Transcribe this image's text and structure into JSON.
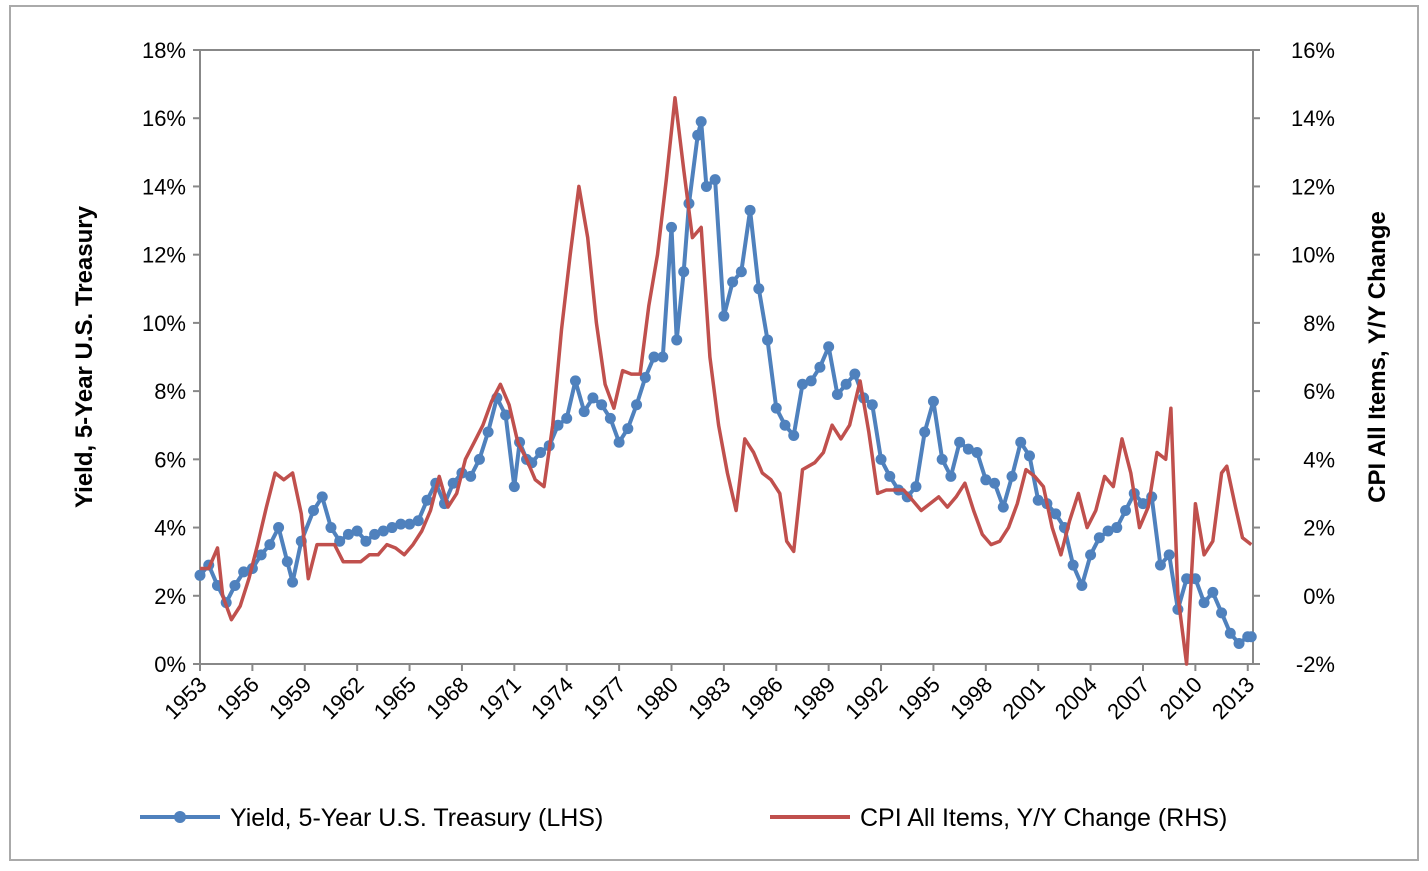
{
  "chart_data": {
    "type": "line",
    "y_label": "Yield, 5-Year U.S. Treasury",
    "y2_label": "CPI All Items, Y/Y Change",
    "xlim": [
      1953,
      2013.3
    ],
    "xticks": [
      1953,
      1956,
      1959,
      1962,
      1965,
      1968,
      1971,
      1974,
      1977,
      1980,
      1983,
      1986,
      1989,
      1992,
      1995,
      1998,
      2001,
      2004,
      2007,
      2010,
      2013
    ],
    "ylim": [
      0,
      18
    ],
    "yticks": [
      {
        "value": 0,
        "label": "0%"
      },
      {
        "value": 2,
        "label": "2%"
      },
      {
        "value": 4,
        "label": "4%"
      },
      {
        "value": 6,
        "label": "6%"
      },
      {
        "value": 8,
        "label": "8%"
      },
      {
        "value": 10,
        "label": "10%"
      },
      {
        "value": 12,
        "label": "12%"
      },
      {
        "value": 14,
        "label": "14%"
      },
      {
        "value": 16,
        "label": "16%"
      },
      {
        "value": 18,
        "label": "18%"
      }
    ],
    "y2lim": [
      -2,
      16
    ],
    "y2ticks": [
      {
        "value": -2,
        "label": "-2%"
      },
      {
        "value": 0,
        "label": "0%"
      },
      {
        "value": 2,
        "label": "2%"
      },
      {
        "value": 4,
        "label": "4%"
      },
      {
        "value": 6,
        "label": "6%"
      },
      {
        "value": 8,
        "label": "8%"
      },
      {
        "value": 10,
        "label": "10%"
      },
      {
        "value": 12,
        "label": "12%"
      },
      {
        "value": 14,
        "label": "14%"
      },
      {
        "value": 16,
        "label": "16%"
      }
    ],
    "legend": "bottom",
    "series": [
      {
        "name": "Yield, 5-Year U.S. Treasury (LHS)",
        "color": "#4f81bd",
        "markers": true,
        "axis": "y",
        "x": [
          1953,
          1953.5,
          1954,
          1954.5,
          1955,
          1955.5,
          1956,
          1956.5,
          1957,
          1957.5,
          1958,
          1958.3,
          1958.8,
          1959.5,
          1960,
          1960.5,
          1961,
          1961.5,
          1962,
          1962.5,
          1963,
          1963.5,
          1964,
          1964.5,
          1965,
          1965.5,
          1966,
          1966.5,
          1967,
          1967.5,
          1968,
          1968.5,
          1969,
          1969.5,
          1970,
          1970.5,
          1971,
          1971.3,
          1971.7,
          1972,
          1972.5,
          1973,
          1973.5,
          1974,
          1974.5,
          1975,
          1975.5,
          1976,
          1976.5,
          1977,
          1977.5,
          1978,
          1978.5,
          1979,
          1979.5,
          1980,
          1980.3,
          1980.7,
          1981,
          1981.5,
          1981.7,
          1982,
          1982.5,
          1983,
          1983.5,
          1984,
          1984.5,
          1985,
          1985.5,
          1986,
          1986.5,
          1987,
          1987.5,
          1988,
          1988.5,
          1989,
          1989.5,
          1990,
          1990.5,
          1991,
          1991.5,
          1992,
          1992.5,
          1993,
          1993.5,
          1994,
          1994.5,
          1995,
          1995.5,
          1996,
          1996.5,
          1997,
          1997.5,
          1998,
          1998.5,
          1999,
          1999.5,
          2000,
          2000.5,
          2001,
          2001.5,
          2002,
          2002.5,
          2003,
          2003.5,
          2004,
          2004.5,
          2005,
          2005.5,
          2006,
          2006.5,
          2007,
          2007.5,
          2008,
          2008.5,
          2009,
          2009.5,
          2010,
          2010.5,
          2011,
          2011.5,
          2012,
          2012.5,
          2013,
          2013.2
        ],
        "values": [
          2.6,
          2.9,
          2.3,
          1.8,
          2.3,
          2.7,
          2.8,
          3.2,
          3.5,
          4.0,
          3.0,
          2.4,
          3.6,
          4.5,
          4.9,
          4.0,
          3.6,
          3.8,
          3.9,
          3.6,
          3.8,
          3.9,
          4.0,
          4.1,
          4.1,
          4.2,
          4.8,
          5.3,
          4.7,
          5.3,
          5.6,
          5.5,
          6.0,
          6.8,
          7.8,
          7.3,
          5.2,
          6.5,
          6.0,
          5.9,
          6.2,
          6.4,
          7.0,
          7.2,
          8.3,
          7.4,
          7.8,
          7.6,
          7.2,
          6.5,
          6.9,
          7.6,
          8.4,
          9.0,
          9.0,
          12.8,
          9.5,
          11.5,
          13.5,
          15.5,
          15.9,
          14.0,
          14.2,
          10.2,
          11.2,
          11.5,
          13.3,
          11.0,
          9.5,
          7.5,
          7.0,
          6.7,
          8.2,
          8.3,
          8.7,
          9.3,
          7.9,
          8.2,
          8.5,
          7.8,
          7.6,
          6.0,
          5.5,
          5.1,
          4.9,
          5.2,
          6.8,
          7.7,
          6.0,
          5.5,
          6.5,
          6.3,
          6.2,
          5.4,
          5.3,
          4.6,
          5.5,
          6.5,
          6.1,
          4.8,
          4.7,
          4.4,
          4.0,
          2.9,
          2.3,
          3.2,
          3.7,
          3.9,
          4.0,
          4.5,
          5.0,
          4.7,
          4.9,
          2.9,
          3.2,
          1.6,
          2.5,
          2.5,
          1.8,
          2.1,
          1.5,
          0.9,
          0.6,
          0.8,
          0.8
        ]
      },
      {
        "name": "CPI All Items, Y/Y Change (RHS)",
        "color": "#c0504d",
        "markers": false,
        "axis": "y2",
        "x": [
          1953,
          1953.5,
          1954,
          1954.3,
          1954.8,
          1955.3,
          1955.8,
          1956.3,
          1956.8,
          1957.3,
          1957.8,
          1958.3,
          1958.8,
          1959.2,
          1959.7,
          1960.2,
          1960.7,
          1961.2,
          1961.7,
          1962.2,
          1962.7,
          1963.2,
          1963.7,
          1964.2,
          1964.7,
          1965.2,
          1965.7,
          1966.2,
          1966.7,
          1967.2,
          1967.7,
          1968.2,
          1968.7,
          1969.2,
          1969.7,
          1970.2,
          1970.7,
          1971.2,
          1971.7,
          1972.2,
          1972.7,
          1973.2,
          1973.7,
          1974.2,
          1974.7,
          1975.2,
          1975.7,
          1976.2,
          1976.7,
          1977.2,
          1977.7,
          1978.2,
          1978.7,
          1979.2,
          1979.7,
          1980.2,
          1980.7,
          1981.2,
          1981.7,
          1982.2,
          1982.7,
          1983.2,
          1983.7,
          1984.2,
          1984.7,
          1985.2,
          1985.7,
          1986.2,
          1986.6,
          1987,
          1987.5,
          1988.2,
          1988.7,
          1989.2,
          1989.7,
          1990.2,
          1990.8,
          1991.3,
          1991.8,
          1992.3,
          1992.8,
          1993.3,
          1993.8,
          1994.3,
          1994.8,
          1995.3,
          1995.8,
          1996.3,
          1996.8,
          1997.3,
          1997.8,
          1998.3,
          1998.8,
          1999.3,
          1999.8,
          2000.3,
          2000.8,
          2001.3,
          2001.8,
          2002.3,
          2002.8,
          2003.3,
          2003.8,
          2004.3,
          2004.8,
          2005.3,
          2005.8,
          2006.3,
          2006.8,
          2007.3,
          2007.8,
          2008.3,
          2008.6,
          2009,
          2009.5,
          2010,
          2010.5,
          2011,
          2011.5,
          2011.8,
          2012.3,
          2012.7,
          2013.2
        ],
        "values": [
          0.8,
          0.8,
          1.4,
          0.0,
          -0.7,
          -0.3,
          0.5,
          1.5,
          2.6,
          3.6,
          3.4,
          3.6,
          2.4,
          0.5,
          1.5,
          1.5,
          1.5,
          1.0,
          1.0,
          1.0,
          1.2,
          1.2,
          1.5,
          1.4,
          1.2,
          1.5,
          1.9,
          2.5,
          3.5,
          2.6,
          3.0,
          4.0,
          4.5,
          5.0,
          5.7,
          6.2,
          5.6,
          4.5,
          4.0,
          3.4,
          3.2,
          5.0,
          7.8,
          10.0,
          12.0,
          10.5,
          8.0,
          6.2,
          5.5,
          6.6,
          6.5,
          6.5,
          8.5,
          10.0,
          12.2,
          14.6,
          12.5,
          10.5,
          10.8,
          7.0,
          5.0,
          3.6,
          2.5,
          4.6,
          4.2,
          3.6,
          3.4,
          3.0,
          1.6,
          1.3,
          3.7,
          3.9,
          4.2,
          5.0,
          4.6,
          5.0,
          6.3,
          4.8,
          3.0,
          3.1,
          3.1,
          3.1,
          2.8,
          2.5,
          2.7,
          2.9,
          2.6,
          2.9,
          3.3,
          2.5,
          1.8,
          1.5,
          1.6,
          2.0,
          2.7,
          3.7,
          3.5,
          3.2,
          2.0,
          1.2,
          2.2,
          3.0,
          2.0,
          2.5,
          3.5,
          3.2,
          4.6,
          3.6,
          2.0,
          2.6,
          4.2,
          4.0,
          5.5,
          0.0,
          -2.0,
          2.7,
          1.2,
          1.6,
          3.6,
          3.8,
          2.6,
          1.7,
          1.5
        ]
      }
    ]
  }
}
